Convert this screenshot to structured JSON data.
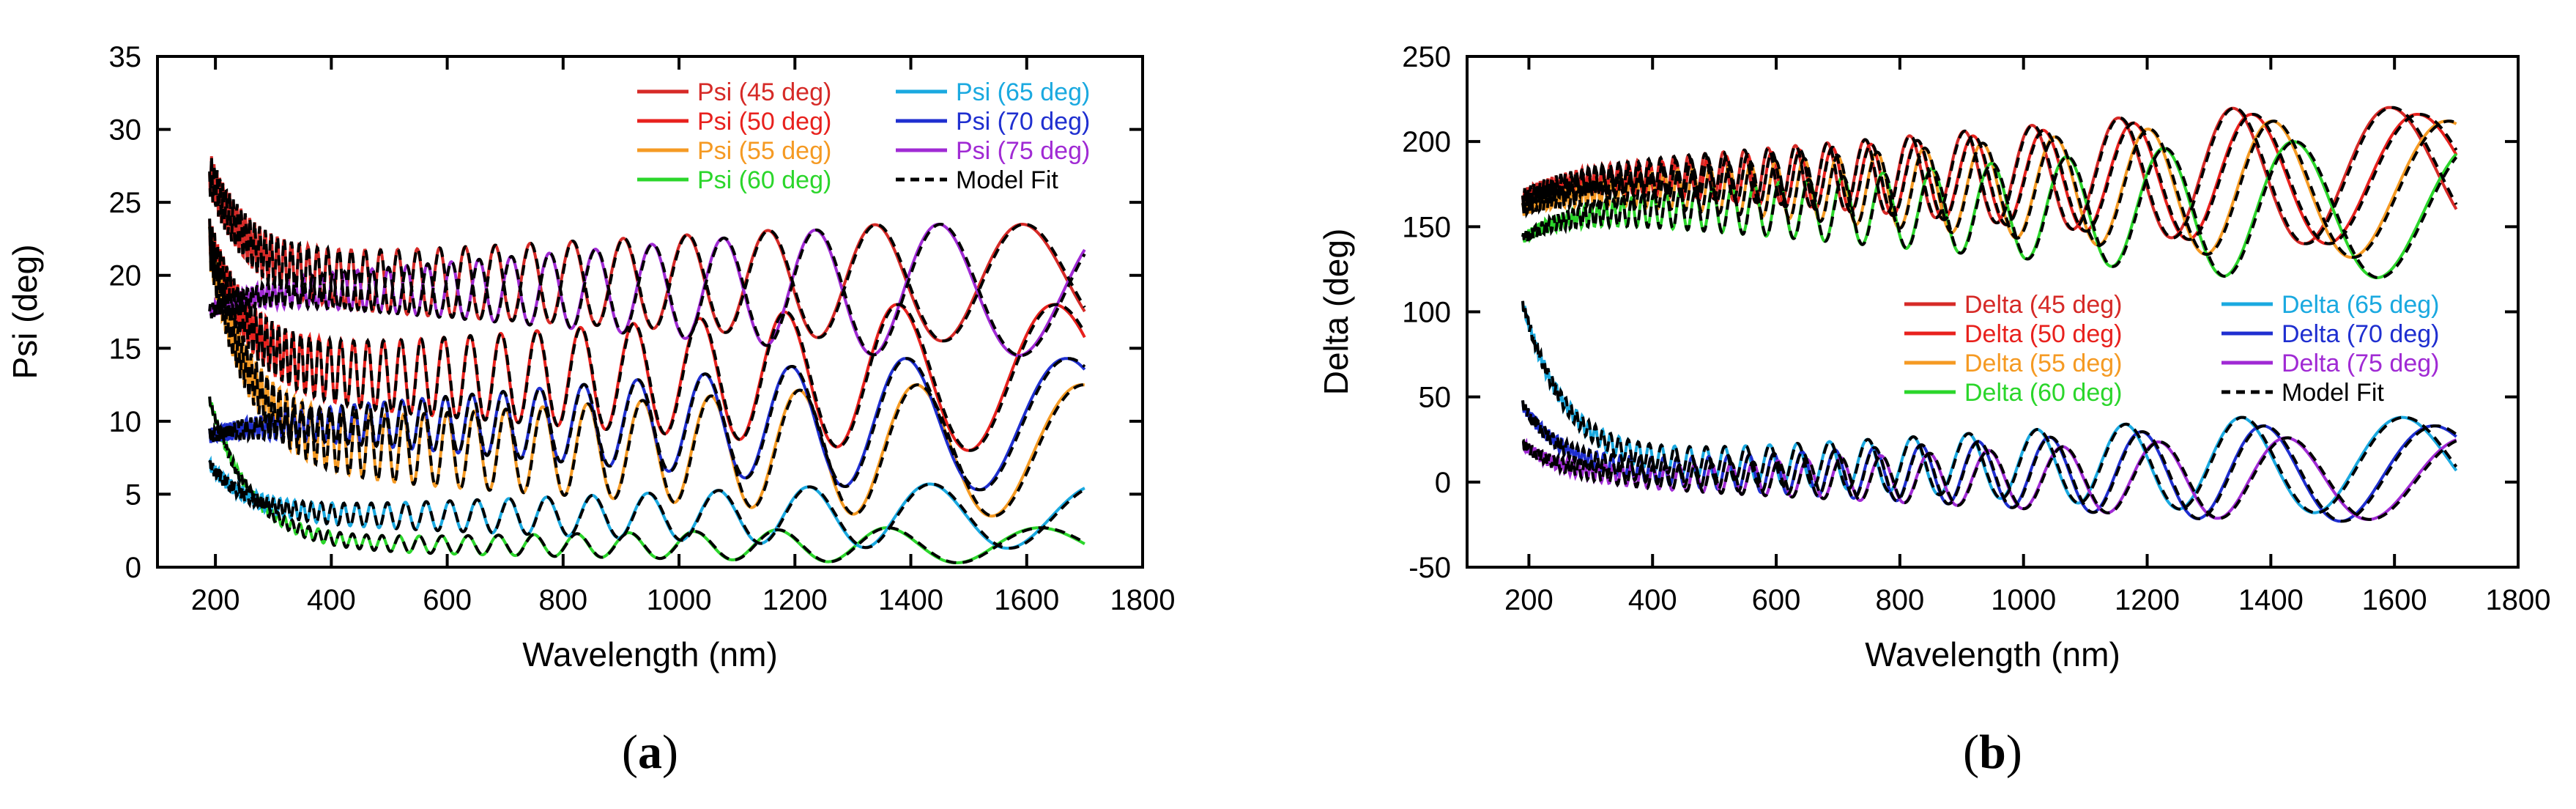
{
  "chart_data": [
    {
      "type": "line",
      "panel_label": "(a)",
      "panel_letter": "a",
      "xlabel": "Wavelength (nm)",
      "ylabel": "Psi (deg)",
      "xlim": [
        100,
        1800
      ],
      "ylim": [
        0,
        35
      ],
      "xticks": [
        200,
        400,
        600,
        800,
        1000,
        1200,
        1400,
        1600,
        1800
      ],
      "yticks": [
        0,
        5,
        10,
        15,
        20,
        25,
        30,
        35
      ],
      "legend_location": "top-right",
      "series": [
        {
          "name": "Psi (45 deg)",
          "color": "#d62a27",
          "style": "solid",
          "curve": {
            "start": 27.0,
            "mid": 19.5,
            "amp_start": 1.5,
            "amp_end": 4.0,
            "periods": 44,
            "phase": 0.0
          }
        },
        {
          "name": "Psi (50 deg)",
          "color": "#e8211d",
          "style": "solid",
          "curve": {
            "start": 22.5,
            "mid": 13.0,
            "amp_start": 1.5,
            "amp_end": 5.0,
            "periods": 44,
            "phase": 1.1
          }
        },
        {
          "name": "Psi (55 deg)",
          "color": "#f59a23",
          "style": "solid",
          "curve": {
            "start": 22.0,
            "mid": 8.0,
            "amp_start": 1.5,
            "amp_end": 4.5,
            "periods": 44,
            "phase": 2.0
          }
        },
        {
          "name": "Psi (60 deg)",
          "color": "#2bd62b",
          "style": "solid",
          "curve": {
            "start": 11.5,
            "mid": 1.5,
            "amp_start": 0.3,
            "amp_end": 1.2,
            "periods": 44,
            "phase": 0.6
          }
        },
        {
          "name": "Psi (65 deg)",
          "color": "#1aa9e0",
          "style": "solid",
          "curve": {
            "start": 7.0,
            "mid": 3.5,
            "amp_start": 0.4,
            "amp_end": 2.2,
            "periods": 44,
            "phase": 2.6
          }
        },
        {
          "name": "Psi (70 deg)",
          "color": "#1f2fd0",
          "style": "solid",
          "curve": {
            "start": 9.0,
            "mid": 9.8,
            "amp_start": 0.5,
            "amp_end": 4.5,
            "periods": 44,
            "phase": 1.5
          }
        },
        {
          "name": "Psi (75 deg)",
          "color": "#a02ad4",
          "style": "solid",
          "curve": {
            "start": 17.5,
            "mid": 19.0,
            "amp_start": 0.5,
            "amp_end": 4.5,
            "periods": 44,
            "phase": 3.0
          }
        },
        {
          "name": "Model Fit",
          "color": "#000000",
          "style": "dashed"
        }
      ]
    },
    {
      "type": "line",
      "panel_label": "(b)",
      "panel_letter": "b",
      "xlabel": "Wavelength (nm)",
      "ylabel": "Delta (deg)",
      "xlim": [
        100,
        1800
      ],
      "ylim": [
        -50,
        250
      ],
      "xticks": [
        200,
        400,
        600,
        800,
        1000,
        1200,
        1400,
        1600,
        1800
      ],
      "yticks": [
        -50,
        0,
        50,
        100,
        150,
        200,
        250
      ],
      "legend_location": "center-right",
      "series": [
        {
          "name": "Delta (45 deg)",
          "color": "#d62a27",
          "style": "solid",
          "curve": {
            "start": 168,
            "mid": 180,
            "amp_start": 4,
            "amp_end": 40,
            "periods": 44,
            "phase": 0.0
          }
        },
        {
          "name": "Delta (50 deg)",
          "color": "#e8211d",
          "style": "solid",
          "curve": {
            "start": 165,
            "mid": 178,
            "amp_start": 4,
            "amp_end": 38,
            "periods": 44,
            "phase": 0.9
          }
        },
        {
          "name": "Delta (55 deg)",
          "color": "#f59a23",
          "style": "solid",
          "curve": {
            "start": 160,
            "mid": 172,
            "amp_start": 4,
            "amp_end": 40,
            "periods": 44,
            "phase": 1.8
          }
        },
        {
          "name": "Delta (60 deg)",
          "color": "#2bd62b",
          "style": "solid",
          "curve": {
            "start": 143,
            "mid": 160,
            "amp_start": 3,
            "amp_end": 40,
            "periods": 44,
            "phase": 2.7
          }
        },
        {
          "name": "Delta (65 deg)",
          "color": "#1aa9e0",
          "style": "solid",
          "curve": {
            "start": 105,
            "mid": 10,
            "amp_start": 3,
            "amp_end": 28,
            "periods": 44,
            "phase": 0.4
          }
        },
        {
          "name": "Delta (70 deg)",
          "color": "#1f2fd0",
          "style": "solid",
          "curve": {
            "start": 45,
            "mid": 5,
            "amp_start": 3,
            "amp_end": 28,
            "periods": 44,
            "phase": 1.4
          }
        },
        {
          "name": "Delta (75 deg)",
          "color": "#a02ad4",
          "style": "solid",
          "curve": {
            "start": 22,
            "mid": 2,
            "amp_start": 3,
            "amp_end": 24,
            "periods": 44,
            "phase": 2.4
          }
        },
        {
          "name": "Model Fit",
          "color": "#000000",
          "style": "dashed"
        }
      ]
    }
  ]
}
